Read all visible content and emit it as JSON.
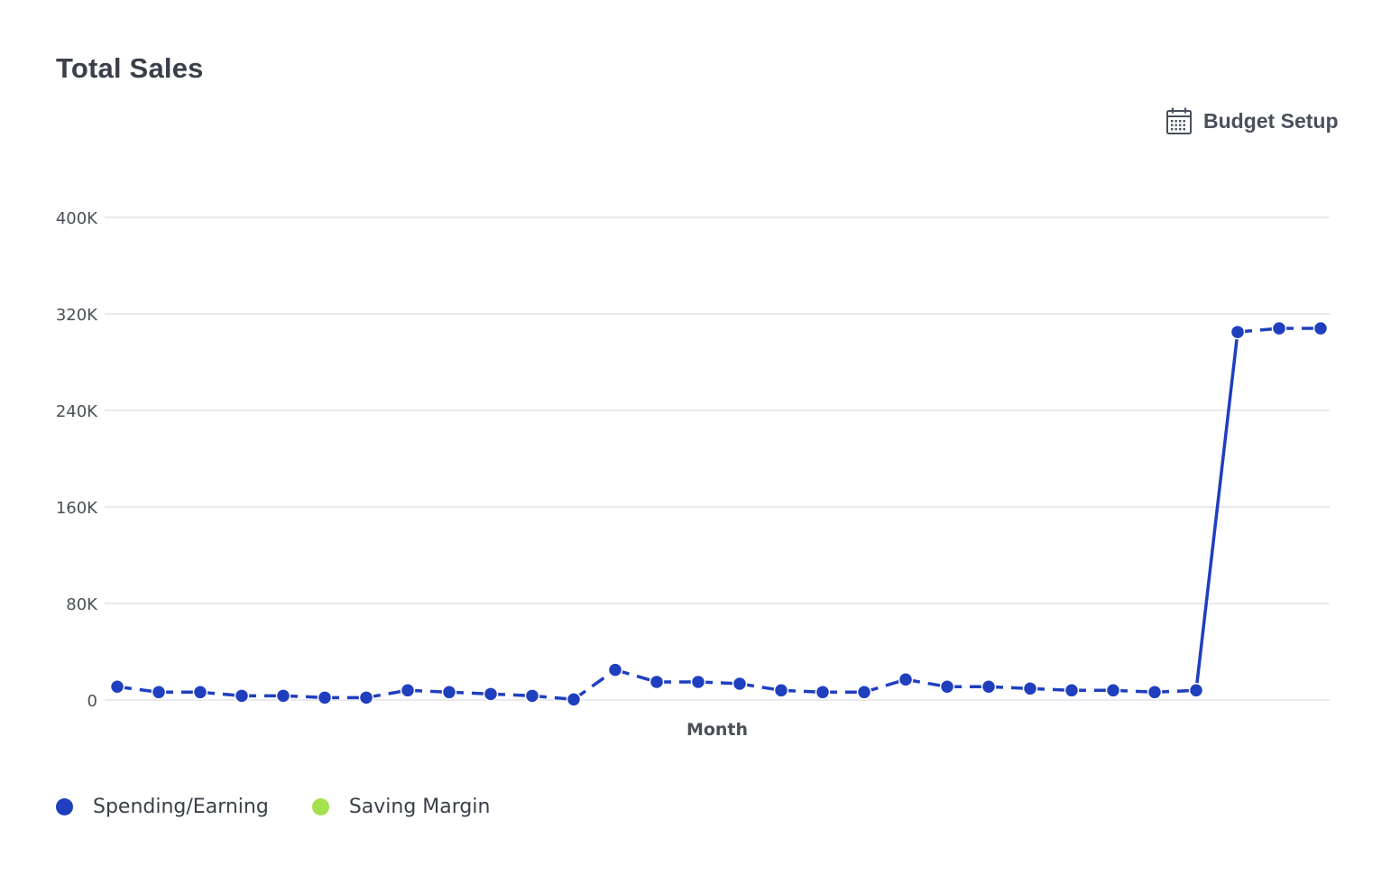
{
  "header": {
    "title": "Total Sales",
    "budget_setup_label": "Budget Setup",
    "budget_setup_icon": "calendar-icon"
  },
  "legend": {
    "items": [
      {
        "label": "Spending/Earning",
        "color": "#1f3fbf"
      },
      {
        "label": "Saving Margin",
        "color": "#a5e04f"
      }
    ]
  },
  "chart_data": {
    "type": "line",
    "title": "Total Sales",
    "xlabel": "Month",
    "ylabel": "",
    "ylim": [
      0,
      400000
    ],
    "yticks": [
      0,
      80000,
      160000,
      240000,
      320000,
      400000
    ],
    "ytick_labels": [
      "0",
      "80K",
      "160K",
      "240K",
      "320K",
      "400K"
    ],
    "grid": true,
    "legend_position": "bottom-left",
    "series": [
      {
        "name": "Spending/Earning",
        "color": "#1f3fbf",
        "values": [
          11000,
          6500,
          6500,
          3500,
          3500,
          2000,
          2000,
          8000,
          6500,
          5000,
          3500,
          500,
          25000,
          15000,
          15000,
          13500,
          8000,
          6500,
          6500,
          17000,
          11000,
          11000,
          9500,
          8000,
          8000,
          6500,
          8000,
          305000,
          308000,
          308000
        ]
      },
      {
        "name": "Saving Margin",
        "color": "#a5e04f",
        "values": []
      }
    ]
  }
}
